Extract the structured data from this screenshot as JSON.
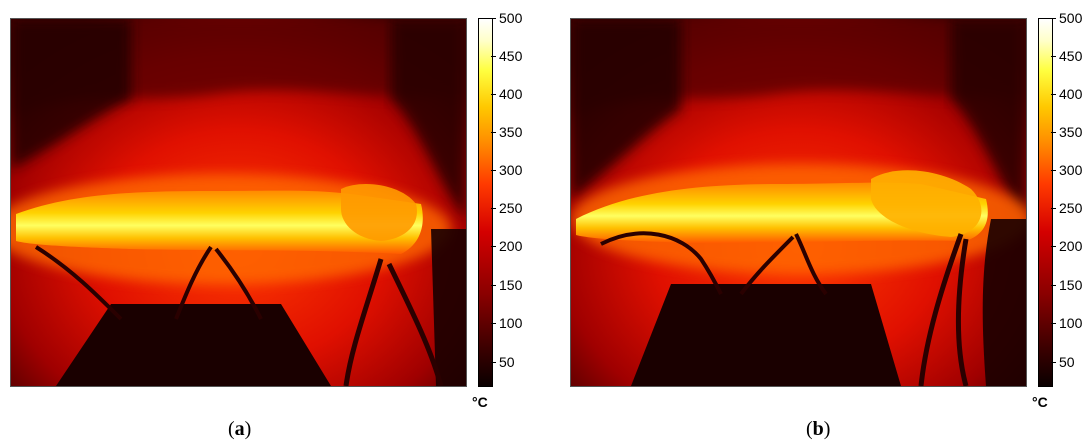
{
  "panels": [
    {
      "id": "a",
      "caption_open": "(",
      "caption_letter": "a",
      "caption_close": ")"
    },
    {
      "id": "b",
      "caption_open": "(",
      "caption_letter": "b",
      "caption_close": ")"
    }
  ],
  "colorbar": {
    "unit": "°C",
    "ticks": [
      "500",
      "450",
      "400",
      "350",
      "300",
      "250",
      "200",
      "150",
      "100",
      "50"
    ],
    "min": 20,
    "max": 500
  }
}
